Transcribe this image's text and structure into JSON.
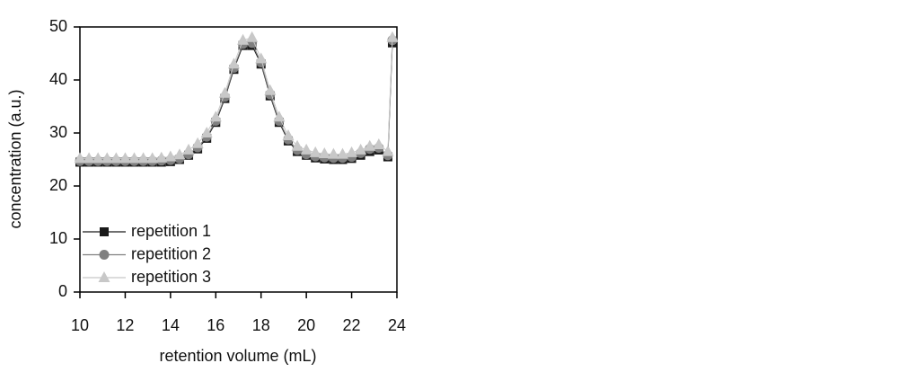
{
  "chart_data": {
    "type": "line",
    "xlabel": "retention volume (mL)",
    "ylabel": "concentration (a.u.)",
    "x": [
      10,
      10.4,
      10.8,
      11.2,
      11.6,
      12,
      12.4,
      12.8,
      13.2,
      13.6,
      14,
      14.4,
      14.8,
      15.2,
      15.6,
      16,
      16.4,
      16.8,
      17.2,
      17.6,
      18,
      18.4,
      18.8,
      19.2,
      19.6,
      20,
      20.4,
      20.8,
      21.2,
      21.6,
      22,
      22.4,
      22.8,
      23.2,
      23.6,
      23.8
    ],
    "series": [
      {
        "name": "repetition 1",
        "color": "#1a1a1a",
        "marker": "square",
        "values": [
          24.5,
          24.5,
          24.5,
          24.5,
          24.5,
          24.5,
          24.5,
          24.5,
          24.5,
          24.5,
          24.6,
          25,
          25.8,
          27,
          29,
          32,
          36.5,
          42,
          46.5,
          46.5,
          43,
          37,
          32,
          28.5,
          26.5,
          25.8,
          25.3,
          25.1,
          25,
          25,
          25.2,
          25.8,
          26.5,
          26.8,
          25.5,
          47
        ]
      },
      {
        "name": "repetition 2",
        "color": "#808080",
        "marker": "circle",
        "values": [
          24.7,
          24.7,
          24.7,
          24.7,
          24.7,
          24.7,
          24.7,
          24.7,
          24.7,
          24.8,
          24.9,
          25.2,
          26,
          27.3,
          29.3,
          32.3,
          36.8,
          42.3,
          46.8,
          47,
          43.3,
          37.3,
          32.3,
          28.8,
          26.8,
          26,
          25.6,
          25.4,
          25.3,
          25.3,
          25.5,
          26.2,
          27,
          27.2,
          25.8,
          47.5
        ]
      },
      {
        "name": "repetition 3",
        "color": "#c8c8c8",
        "marker": "triangle",
        "values": [
          25.2,
          25.2,
          25.2,
          25.2,
          25.2,
          25.2,
          25.2,
          25.2,
          25.2,
          25.3,
          25.5,
          25.9,
          26.8,
          28,
          30,
          33,
          37.5,
          43,
          47.5,
          48,
          44,
          38,
          33,
          29.5,
          27.5,
          26.8,
          26.3,
          26.1,
          26,
          26,
          26.3,
          26.8,
          27.5,
          27.8,
          26.5,
          48
        ]
      }
    ],
    "xlim": [
      10,
      24
    ],
    "ylim": [
      0,
      50
    ],
    "xticks": [
      10,
      12,
      14,
      16,
      18,
      20,
      22,
      24
    ],
    "yticks": [
      0,
      10,
      20,
      30,
      40,
      50
    ],
    "legend": "lower left"
  }
}
